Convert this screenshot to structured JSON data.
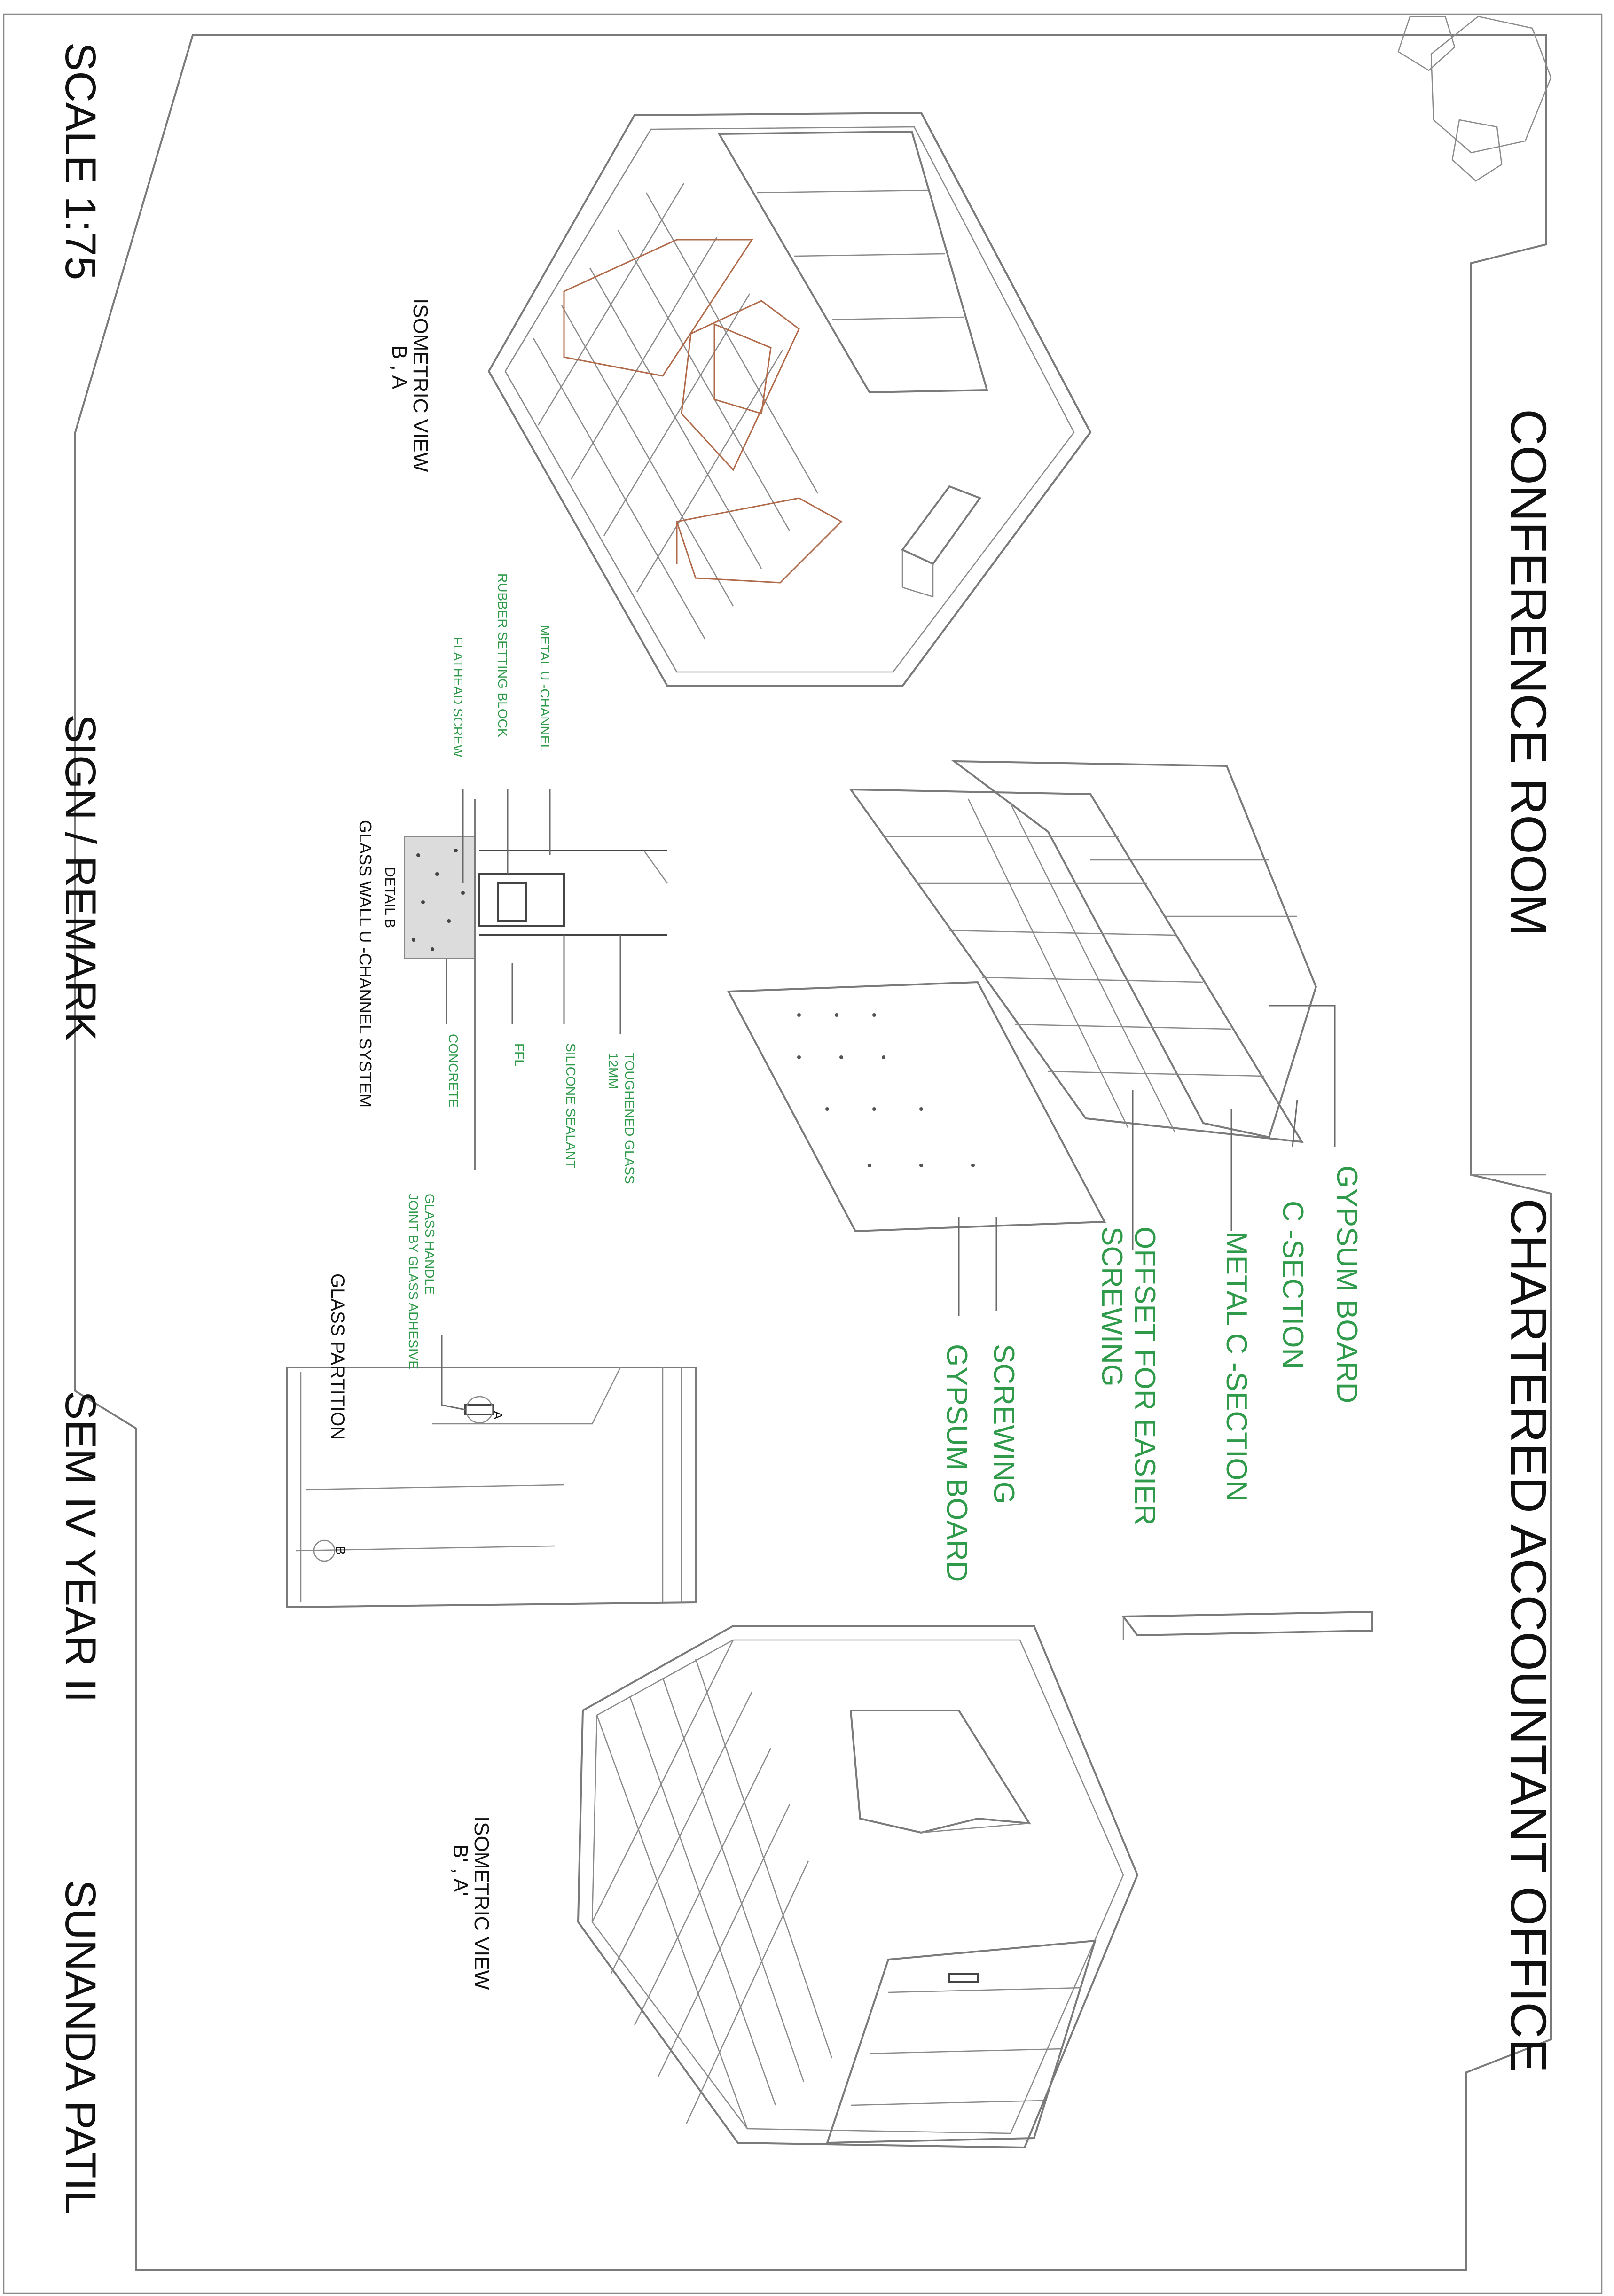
{
  "sheet": {
    "scale": "SCALE 1:75",
    "sign_remark": "SIGN / REMARK",
    "semester": "SEM  IV  YEAR II",
    "author": "SUNANDA PATIL",
    "room_title": "CONFERENCE ROOM",
    "project_title": "CHARTERED ACCOUNTANT OFFICE"
  },
  "views": {
    "iso_1_title": "ISOMETRIC VIEW",
    "iso_1_section": "B , A",
    "iso_2_title": "ISOMETRIC VIEW",
    "iso_2_section": "B' , A'"
  },
  "detail_b": {
    "label": "DETAIL B",
    "title": "GLASS WALL U -CHANNEL SYSTEM",
    "callouts_left": [
      "METAL U -CHANNEL",
      "RUBBER SETTING BLOCK",
      "FLATHEAD SCREW"
    ],
    "callouts_right": [
      "TOUGHENED GLASS",
      "12MM",
      "SILICONE SEALANT",
      "FFL",
      "CONCRETE"
    ]
  },
  "ceiling_detail": {
    "callouts": [
      "GYPSUM BOARD",
      "C -SECTION",
      "METAL C -SECTION",
      "OFFSET FOR EASIER",
      "SCREWING",
      "SCREWING",
      "GYPSUM BOARD"
    ]
  },
  "partition": {
    "title": "GLASS PARTITION",
    "handle_note_1": "GLASS HANDLE",
    "handle_note_2": "JOINT BY GLASS ADHESIVE",
    "marker_a": "A",
    "marker_b": "B"
  },
  "colors": {
    "annotation": "#2f9a4a",
    "furniture": "#b06a4a",
    "linework": "#7a7a7a"
  }
}
